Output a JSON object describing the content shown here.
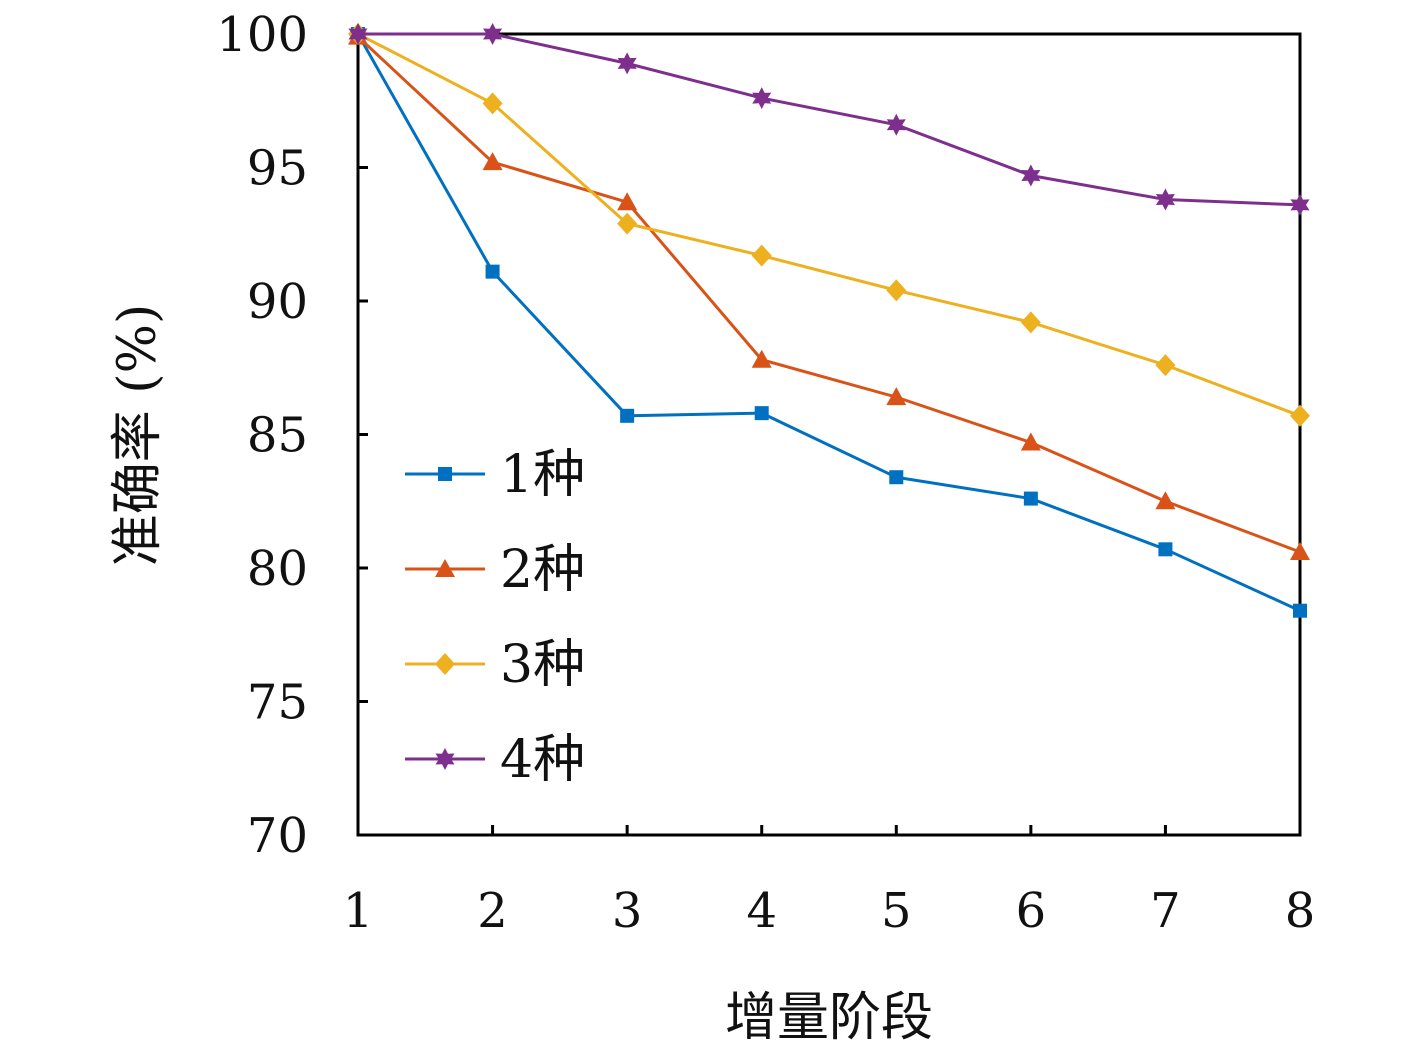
{
  "chart_data": {
    "type": "line",
    "title": "",
    "xlabel": "增量阶段",
    "ylabel": "准确率 (%)",
    "x": [
      1,
      2,
      3,
      4,
      5,
      6,
      7,
      8
    ],
    "x_tick_labels": [
      "1",
      "2",
      "3",
      "4",
      "5",
      "6",
      "7",
      "8"
    ],
    "xlim": [
      1,
      8
    ],
    "ylim": [
      70,
      100
    ],
    "y_ticks": [
      70,
      75,
      80,
      85,
      90,
      95,
      100
    ],
    "y_tick_labels": [
      "70",
      "75",
      "80",
      "85",
      "90",
      "95",
      "100"
    ],
    "grid": false,
    "legend_position": "center-left",
    "series": [
      {
        "name": "1种",
        "color": "#0070C0",
        "marker": "square",
        "values": [
          100,
          91.1,
          85.7,
          85.8,
          83.4,
          82.6,
          80.7,
          78.4
        ]
      },
      {
        "name": "2种",
        "color": "#D95319",
        "marker": "triangle",
        "values": [
          99.9,
          95.2,
          93.7,
          87.8,
          86.4,
          84.7,
          82.5,
          80.6
        ]
      },
      {
        "name": "3种",
        "color": "#EDB120",
        "marker": "diamond",
        "values": [
          100,
          97.4,
          92.9,
          91.7,
          90.4,
          89.2,
          87.6,
          85.7
        ]
      },
      {
        "name": "4种",
        "color": "#7E2F8E",
        "marker": "star",
        "values": [
          100,
          100,
          98.9,
          97.6,
          96.6,
          94.7,
          93.8,
          93.6
        ]
      }
    ]
  }
}
